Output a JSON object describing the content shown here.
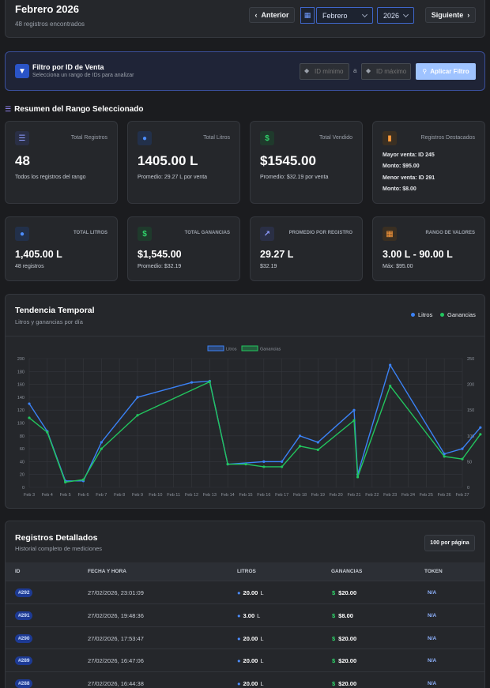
{
  "header": {
    "title": "Febrero 2026",
    "subtitle": "48 registros encontrados",
    "prev_label": "Anterior",
    "month": "Febrero",
    "year": "2026",
    "next_label": "Siguiente"
  },
  "filter": {
    "title": "Filtro por ID de Venta",
    "subtitle": "Selecciona un rango de IDs para analizar",
    "min_placeholder": "ID mínimo",
    "separator": "a",
    "max_placeholder": "ID máximo",
    "apply_label": "Aplicar Filtro"
  },
  "summary": {
    "title": "Resumen del Rango Seleccionado",
    "cards": [
      {
        "label": "Total Registros",
        "value": "48",
        "sub": "Todos los registros del rango"
      },
      {
        "label": "Total Litros",
        "value": "1405.00 L",
        "sub": "Promedio: 29.27 L por venta"
      },
      {
        "label": "Total Vendido",
        "value": "$1545.00",
        "sub": "Promedio: $32.19 por venta"
      }
    ],
    "highlight": {
      "label": "Registros Destacados",
      "max_sale": "Mayor venta: ID 245",
      "max_amount": "Monto: $95.00",
      "min_sale": "Menor venta: ID 291",
      "min_amount": "Monto: $8.00"
    }
  },
  "stats": [
    {
      "label": "TOTAL LITROS",
      "value": "1,405.00 L",
      "sub": "48 registros"
    },
    {
      "label": "TOTAL GANANCIAS",
      "value": "$1,545.00",
      "sub": "Promedio: $32.19"
    },
    {
      "label": "PROMEDIO POR REGISTRO",
      "value": "29.27 L",
      "sub": "$32.19"
    },
    {
      "label": "RANGO DE VALORES",
      "value": "3.00 L - 90.00 L",
      "sub": "Máx: $95.00"
    }
  ],
  "trend": {
    "title": "Tendencia Temporal",
    "subtitle": "Litros y ganancias por día",
    "legend_litros": "Litros",
    "legend_ganancias": "Ganancias"
  },
  "colors": {
    "blue": "#3b82f6",
    "green": "#22c55e",
    "accent": "#8ab4ff"
  },
  "chart_data": {
    "type": "line",
    "x": [
      "Feb 3",
      "Feb 4",
      "Feb 5",
      "Feb 6",
      "Feb 7",
      "Feb 8",
      "Feb 9",
      "Feb 10",
      "Feb 11",
      "Feb 12",
      "Feb 13",
      "Feb 14",
      "Feb 15",
      "Feb 16",
      "Feb 17",
      "Feb 18",
      "Feb 19",
      "Feb 20",
      "Feb 21",
      "Feb 22",
      "Feb 23",
      "Feb 24",
      "Feb 25",
      "Feb 26",
      "Feb 27"
    ],
    "series": [
      {
        "name": "Litros",
        "axis": "left",
        "points": [
          [
            0,
            130
          ],
          [
            1,
            87
          ],
          [
            2,
            10
          ],
          [
            3,
            10
          ],
          [
            4,
            70
          ],
          [
            6,
            140
          ],
          [
            9,
            163
          ],
          [
            10,
            165
          ],
          [
            11,
            36
          ],
          [
            13,
            40
          ],
          [
            14,
            40
          ],
          [
            15,
            80
          ],
          [
            16,
            70
          ],
          [
            18,
            120
          ],
          [
            18.2,
            20
          ],
          [
            20,
            190
          ],
          [
            23,
            52
          ],
          [
            24,
            60
          ],
          [
            25,
            93
          ]
        ]
      },
      {
        "name": "Ganancias",
        "axis": "right",
        "points": [
          [
            0,
            135
          ],
          [
            1,
            107
          ],
          [
            2,
            10
          ],
          [
            3,
            15
          ],
          [
            4,
            75
          ],
          [
            6,
            140
          ],
          [
            10,
            205
          ],
          [
            11,
            45
          ],
          [
            12,
            45
          ],
          [
            13,
            40
          ],
          [
            14,
            40
          ],
          [
            15,
            80
          ],
          [
            16,
            73
          ],
          [
            18,
            130
          ],
          [
            18.2,
            20
          ],
          [
            20,
            197
          ],
          [
            23,
            60
          ],
          [
            24,
            55
          ],
          [
            25,
            103
          ]
        ]
      }
    ],
    "y_left": {
      "ticks": [
        "0",
        "20",
        "40",
        "60",
        "80",
        "100",
        "120",
        "140",
        "160",
        "180",
        "200"
      ],
      "lim": [
        0,
        200
      ]
    },
    "y_right": {
      "ticks": [
        "0",
        "50",
        "100",
        "150",
        "200",
        "250"
      ],
      "lim": [
        0,
        250
      ]
    },
    "legend": [
      "Litros",
      "Ganancias"
    ]
  },
  "records": {
    "title": "Registros Detallados",
    "subtitle": "Historial completo de mediciones",
    "per_page": "100 por página",
    "headers": [
      "ID",
      "FECHA Y HORA",
      "LITROS",
      "GANANCIAS",
      "TOKEN"
    ],
    "rows": [
      {
        "id": "#292",
        "date": "27/02/2026, 23:01:09",
        "litros": "20.00",
        "ganancias": "$20.00",
        "token": "N/A"
      },
      {
        "id": "#291",
        "date": "27/02/2026, 19:48:36",
        "litros": "3.00",
        "ganancias": "$8.00",
        "token": "N/A"
      },
      {
        "id": "#290",
        "date": "27/02/2026, 17:53:47",
        "litros": "20.00",
        "ganancias": "$20.00",
        "token": "N/A"
      },
      {
        "id": "#289",
        "date": "27/02/2026, 16:47:06",
        "litros": "20.00",
        "ganancias": "$20.00",
        "token": "N/A"
      },
      {
        "id": "#288",
        "date": "27/02/2026, 16:44:38",
        "litros": "20.00",
        "ganancias": "$20.00",
        "token": "N/A"
      }
    ],
    "unit": "L"
  }
}
